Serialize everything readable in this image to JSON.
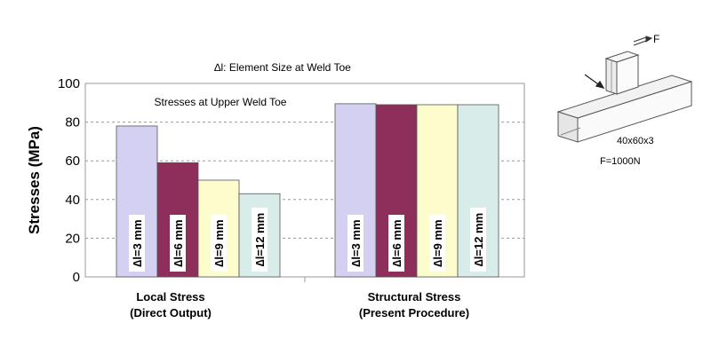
{
  "chart_data": {
    "type": "bar",
    "top_note": "∆l: Element Size at Weld Toe",
    "plot_annotation": "Stresses at Upper Weld Toe",
    "ylabel": "Stresses (MPa)",
    "ylim": [
      0,
      100
    ],
    "yticks": [
      "0",
      "20",
      "40",
      "60",
      "80",
      "100"
    ],
    "grid": "horizontal dashed",
    "groups": [
      {
        "label_line1": "Local Stress",
        "label_line2": "(Direct Output)",
        "bars": [
          {
            "label": "∆l=3 mm",
            "value": 78
          },
          {
            "label": "∆l=6 mm",
            "value": 59
          },
          {
            "label": "∆l=9 mm",
            "value": 50
          },
          {
            "label": "∆l=12 mm",
            "value": 43
          }
        ]
      },
      {
        "label_line1": "Structural Stress",
        "label_line2": "(Present Procedure)",
        "bars": [
          {
            "label": "∆l=3 mm",
            "value": 89.5
          },
          {
            "label": "∆l=6 mm",
            "value": 89
          },
          {
            "label": "∆l=9 mm",
            "value": 89
          },
          {
            "label": "∆l=12 mm",
            "value": 89
          }
        ]
      }
    ],
    "bar_colors": [
      "#d4d0f2",
      "#8e2e5a",
      "#fdfccc",
      "#d8ecea"
    ]
  },
  "inset": {
    "force_label": "F",
    "dims_label": "40x60x3",
    "force_value_label": "F=1000N"
  }
}
